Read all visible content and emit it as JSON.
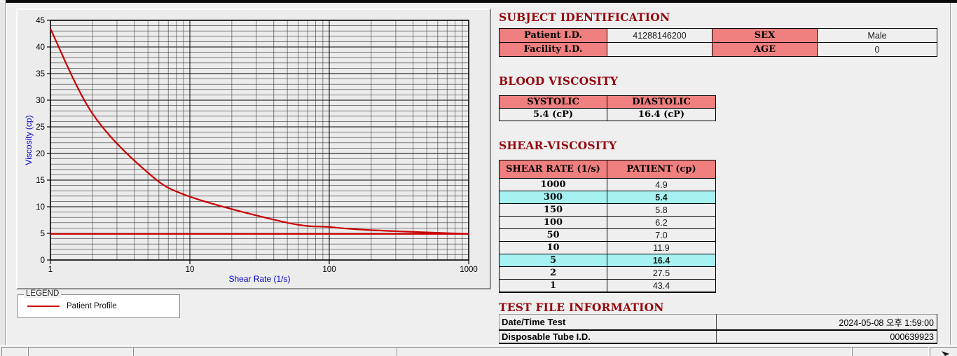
{
  "colors": {
    "header_pink": "#F08080",
    "highlight_cyan": "#A6F2F2",
    "title_maroon": "#96060C",
    "curve_red": "#CC0000",
    "axis_blue": "#0000C8",
    "grid_minor": "#3a3a3a",
    "grid_major": "#000000"
  },
  "chart_data": {
    "type": "line",
    "x_scale": "log",
    "xlabel": "Shear Rate (1/s)",
    "ylabel": "Viscosity (cp)",
    "xlim": [
      1,
      1000
    ],
    "ylim": [
      0,
      45
    ],
    "x_major_ticks": [
      1,
      10,
      100,
      1000
    ],
    "y_major_ticks": [
      0,
      5,
      10,
      15,
      20,
      25,
      30,
      35,
      40,
      45
    ],
    "y_minor_step": 1,
    "grid": "both",
    "legend_position": "below-left",
    "series": [
      {
        "name": "Patient Profile",
        "color": "#CC0000",
        "x": [
          1,
          2,
          5,
          10,
          50,
          100,
          150,
          300,
          1000
        ],
        "y": [
          43.4,
          27.5,
          16.4,
          11.9,
          7.0,
          6.2,
          5.8,
          5.4,
          4.9
        ]
      }
    ],
    "baseline": {
      "y": 4.9,
      "color": "#CC0000"
    }
  },
  "legend": {
    "box_label": "LEGEND",
    "entries": [
      {
        "label": "Patient Profile",
        "color": "#CC0000"
      }
    ]
  },
  "subject_identification": {
    "title": "SUBJECT IDENTIFICATION",
    "patient_id_label": "Patient I.D.",
    "patient_id_value": "41288146200",
    "sex_label": "SEX",
    "sex_value": "Male",
    "facility_id_label": "Facility I.D.",
    "facility_id_value": "",
    "age_label": "AGE",
    "age_value": "0"
  },
  "blood_viscosity": {
    "title": "BLOOD VISCOSITY",
    "systolic_header": "SYSTOLIC",
    "diastolic_header": "DIASTOLIC",
    "systolic_value": "5.4 (cP)",
    "diastolic_value": "16.4 (cP)"
  },
  "shear_viscosity": {
    "title": "SHEAR-VISCOSITY",
    "col_rate": "SHEAR RATE (1/s)",
    "col_patient": "PATIENT (cp)",
    "rows": [
      {
        "rate": "1000",
        "patient": "4.9",
        "highlight": false
      },
      {
        "rate": "300",
        "patient": "5.4",
        "highlight": true
      },
      {
        "rate": "150",
        "patient": "5.8",
        "highlight": false
      },
      {
        "rate": "100",
        "patient": "6.2",
        "highlight": false
      },
      {
        "rate": "50",
        "patient": "7.0",
        "highlight": false
      },
      {
        "rate": "10",
        "patient": "11.9",
        "highlight": false
      },
      {
        "rate": "5",
        "patient": "16.4",
        "highlight": true
      },
      {
        "rate": "2",
        "patient": "27.5",
        "highlight": false
      },
      {
        "rate": "1",
        "patient": "43.4",
        "highlight": false
      }
    ]
  },
  "test_file_information": {
    "title": "TEST FILE INFORMATION",
    "date_label": "Date/Time Test",
    "date_value": "2024-05-08  오후 1:59:00",
    "tube_label": "Disposable Tube I.D.",
    "tube_value": "000639923"
  }
}
